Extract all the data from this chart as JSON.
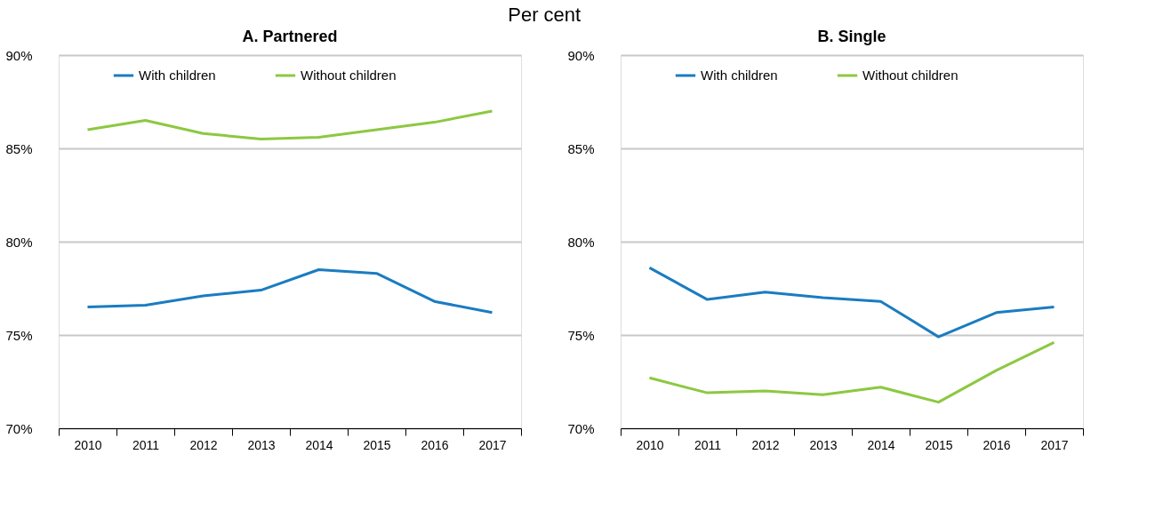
{
  "chart_data": [
    {
      "type": "line",
      "title": "A. Partnered",
      "annotations": [
        "Per cent"
      ],
      "categories": [
        "2010",
        "2011",
        "2012",
        "2013",
        "2014",
        "2015",
        "2016",
        "2017"
      ],
      "series": [
        {
          "name": "With children",
          "color": "#1a7cc1",
          "values": [
            76.5,
            76.6,
            77.1,
            77.4,
            78.5,
            78.3,
            76.8,
            76.2
          ]
        },
        {
          "name": "Without children",
          "color": "#8cc841",
          "values": [
            86.0,
            86.5,
            85.8,
            85.5,
            85.6,
            86.0,
            86.4,
            87.0
          ]
        }
      ],
      "ylim": [
        70,
        90
      ],
      "yticks": [
        {
          "value": 70,
          "label": "70%"
        },
        {
          "value": 75,
          "label": "75%"
        },
        {
          "value": 80,
          "label": "80%"
        },
        {
          "value": 85,
          "label": "85%"
        },
        {
          "value": 90,
          "label": "90%"
        }
      ],
      "grid": "y",
      "legend": "top"
    },
    {
      "type": "line",
      "title": "B. Single",
      "categories": [
        "2010",
        "2011",
        "2012",
        "2013",
        "2014",
        "2015",
        "2016",
        "2017"
      ],
      "series": [
        {
          "name": "With children",
          "color": "#1a7cc1",
          "values": [
            78.6,
            76.9,
            77.3,
            77.0,
            76.8,
            74.9,
            76.2,
            76.5
          ]
        },
        {
          "name": "Without children",
          "color": "#8cc841",
          "values": [
            72.7,
            71.9,
            72.0,
            71.8,
            72.2,
            71.4,
            73.1,
            74.6
          ]
        }
      ],
      "ylim": [
        70,
        90
      ],
      "yticks": [
        {
          "value": 70,
          "label": "70%"
        },
        {
          "value": 75,
          "label": "75%"
        },
        {
          "value": 80,
          "label": "80%"
        },
        {
          "value": 85,
          "label": "85%"
        },
        {
          "value": 90,
          "label": "90%"
        }
      ],
      "grid": "y",
      "legend": "top"
    }
  ]
}
